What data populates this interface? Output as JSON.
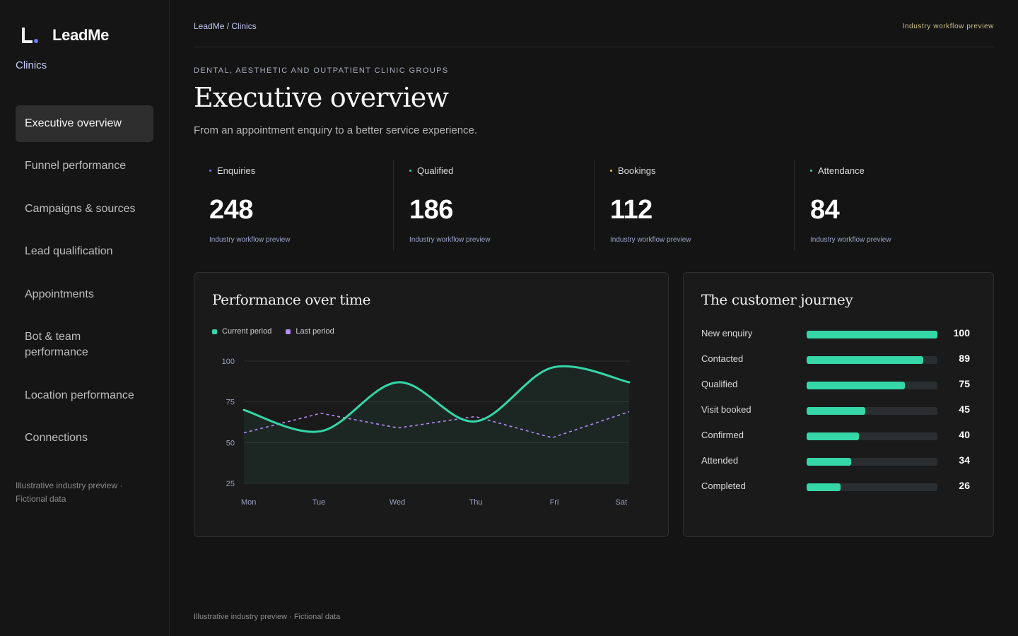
{
  "sidebar": {
    "brand_name": "LeadMe",
    "workspace": "Clinics",
    "items": [
      {
        "label": "Executive overview",
        "active": true
      },
      {
        "label": "Funnel performance"
      },
      {
        "label": "Campaigns & sources"
      },
      {
        "label": "Lead qualification"
      },
      {
        "label": "Appointments"
      },
      {
        "label": "Bot & team performance"
      },
      {
        "label": "Location performance"
      },
      {
        "label": "Connections"
      }
    ],
    "footer": "Illustrative industry preview · Fictional data"
  },
  "header": {
    "breadcrumb": "LeadMe / Clinics",
    "preview_tag": "Industry workflow preview"
  },
  "page": {
    "eyebrow": "DENTAL, AESTHETIC AND OUTPATIENT CLINIC GROUPS",
    "title": "Executive overview",
    "subtitle": "From an appointment enquiry to a better service experience."
  },
  "kpis": [
    {
      "label": "Enquiries",
      "value": "248",
      "note": "Industry workflow preview",
      "dot_color": "#6f7cff"
    },
    {
      "label": "Qualified",
      "value": "186",
      "note": "Industry workflow preview",
      "dot_color": "#35d6a8"
    },
    {
      "label": "Bookings",
      "value": "112",
      "note": "Industry workflow preview",
      "dot_color": "#f2c94c"
    },
    {
      "label": "Attendance",
      "value": "84",
      "note": "Industry workflow preview",
      "dot_color": "#35d6a8"
    }
  ],
  "performance": {
    "title": "Performance over time",
    "legend": [
      {
        "label": "Current period",
        "color": "#35d6a8"
      },
      {
        "label": "Last period",
        "color": "#b48cf0"
      }
    ]
  },
  "chart_data": {
    "type": "line",
    "title": "Performance over time",
    "x": [
      "Mon",
      "Tue",
      "Wed",
      "Thu",
      "Fri",
      "Sat"
    ],
    "yticks": [
      100,
      75,
      50,
      25
    ],
    "ylim": [
      25,
      100
    ],
    "grid": true,
    "legend_position": "top-left",
    "series": [
      {
        "name": "Current period",
        "color": "#35d6a8",
        "style": "solid-area",
        "values": [
          70,
          57,
          87,
          63,
          96,
          87
        ]
      },
      {
        "name": "Last period",
        "color": "#b48cf0",
        "style": "dashed",
        "values": [
          56,
          68,
          59,
          66,
          53,
          69
        ]
      }
    ]
  },
  "journey": {
    "title": "The customer journey",
    "bar_color": "#35d6a8",
    "stages": [
      {
        "label": "New enquiry",
        "value": 100
      },
      {
        "label": "Contacted",
        "value": 89
      },
      {
        "label": "Qualified",
        "value": 75
      },
      {
        "label": "Visit booked",
        "value": 45
      },
      {
        "label": "Confirmed",
        "value": 40
      },
      {
        "label": "Attended",
        "value": 34
      },
      {
        "label": "Completed",
        "value": 26
      }
    ]
  },
  "footer": {
    "text": "Illustrative industry preview · Fictional data"
  }
}
